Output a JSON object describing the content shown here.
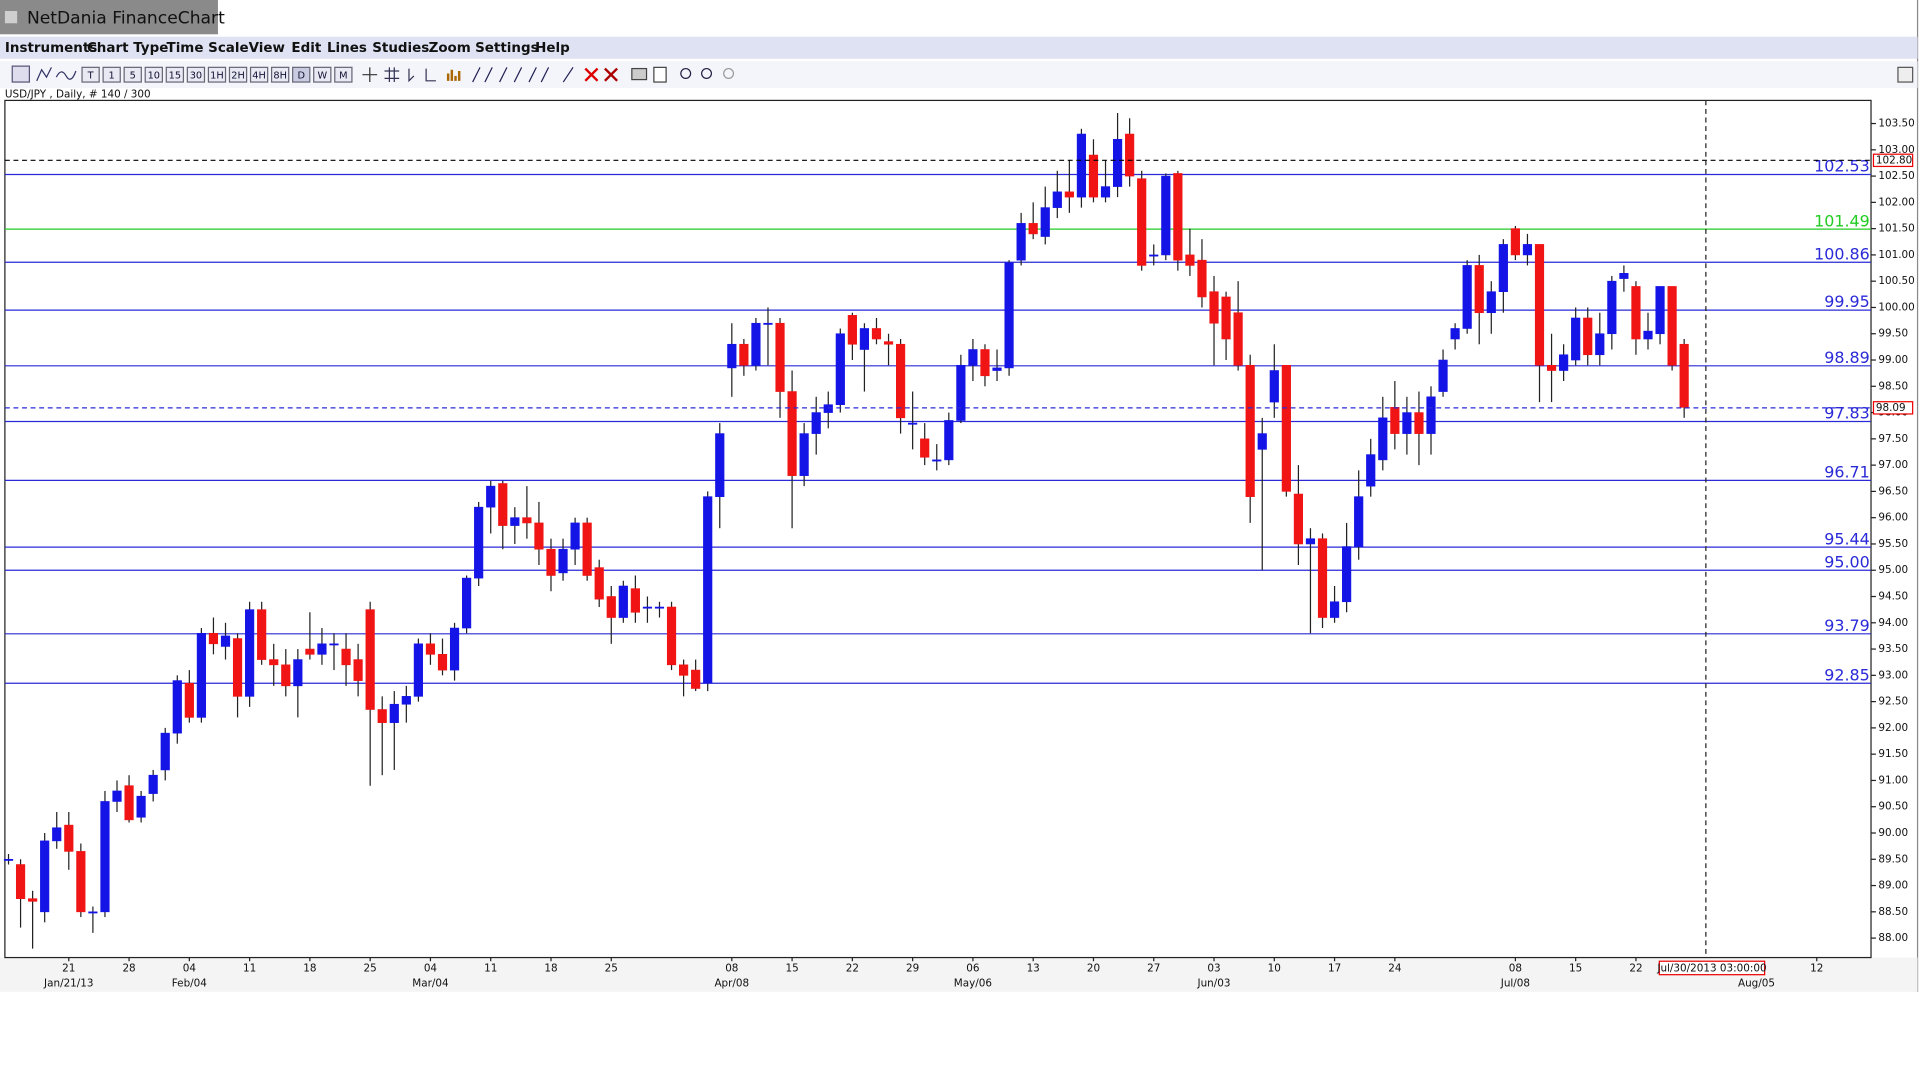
{
  "window_title": "NetDania FinanceChart",
  "menu": [
    "Instruments",
    "Chart Type",
    "Time Scale",
    "View",
    "Edit",
    "Lines",
    "Studies",
    "Zoom",
    "Settings",
    "Help"
  ],
  "toolbar": [
    "T",
    "1",
    "5",
    "10",
    "15",
    "30",
    "1H",
    "2H",
    "4H",
    "8H",
    "D",
    "W",
    "M"
  ],
  "chart_data": {
    "type": "candlestick",
    "title": "USD/JPY , Daily, # 140 / 300",
    "up_color": "#1414e6",
    "down_color": "#f01414",
    "ohlc": [
      [
        89.5,
        89.6,
        89.4,
        89.5
      ],
      [
        89.4,
        89.5,
        88.2,
        88.75
      ],
      [
        88.75,
        88.9,
        87.8,
        88.7
      ],
      [
        88.5,
        90.0,
        88.3,
        89.85
      ],
      [
        89.85,
        90.4,
        89.7,
        90.1
      ],
      [
        90.15,
        90.4,
        89.3,
        89.65
      ],
      [
        89.65,
        89.8,
        88.4,
        88.5
      ],
      [
        88.5,
        88.6,
        88.1,
        88.5
      ],
      [
        88.5,
        90.8,
        88.4,
        90.6
      ],
      [
        90.6,
        91.0,
        90.4,
        90.8
      ],
      [
        90.9,
        91.1,
        90.2,
        90.25
      ],
      [
        90.3,
        90.8,
        90.2,
        90.7
      ],
      [
        90.75,
        91.2,
        90.6,
        91.1
      ],
      [
        91.2,
        92.0,
        91.0,
        91.9
      ],
      [
        91.9,
        93.0,
        91.7,
        92.9
      ],
      [
        92.85,
        93.1,
        92.1,
        92.2
      ],
      [
        92.2,
        93.9,
        92.1,
        93.8
      ],
      [
        93.8,
        94.1,
        93.4,
        93.6
      ],
      [
        93.55,
        94.0,
        93.3,
        93.75
      ],
      [
        93.7,
        93.8,
        92.2,
        92.6
      ],
      [
        92.6,
        94.4,
        92.4,
        94.25
      ],
      [
        94.25,
        94.4,
        93.2,
        93.3
      ],
      [
        93.3,
        93.6,
        92.8,
        93.2
      ],
      [
        93.2,
        93.5,
        92.6,
        92.8
      ],
      [
        92.8,
        93.5,
        92.2,
        93.3
      ],
      [
        93.5,
        94.2,
        93.3,
        93.4
      ],
      [
        93.4,
        93.9,
        93.2,
        93.6
      ],
      [
        93.6,
        93.8,
        93.1,
        93.6
      ],
      [
        93.5,
        93.8,
        92.8,
        93.2
      ],
      [
        93.3,
        93.6,
        92.6,
        92.9
      ],
      [
        94.25,
        94.4,
        90.9,
        92.35
      ],
      [
        92.35,
        92.6,
        91.1,
        92.1
      ],
      [
        92.1,
        92.7,
        91.2,
        92.45
      ],
      [
        92.45,
        92.8,
        92.1,
        92.6
      ],
      [
        92.6,
        93.7,
        92.5,
        93.6
      ],
      [
        93.6,
        93.8,
        93.2,
        93.4
      ],
      [
        93.4,
        93.7,
        93.0,
        93.1
      ],
      [
        93.1,
        94.0,
        92.9,
        93.9
      ],
      [
        93.9,
        94.9,
        93.8,
        94.85
      ],
      [
        94.85,
        96.3,
        94.7,
        96.2
      ],
      [
        96.2,
        96.7,
        95.7,
        96.6
      ],
      [
        96.65,
        96.7,
        95.4,
        95.85
      ],
      [
        95.85,
        96.2,
        95.5,
        96.0
      ],
      [
        96.0,
        96.6,
        95.6,
        95.9
      ],
      [
        95.9,
        96.3,
        95.1,
        95.4
      ],
      [
        95.4,
        95.6,
        94.6,
        94.9
      ],
      [
        94.95,
        95.6,
        94.8,
        95.4
      ],
      [
        95.4,
        96.0,
        95.1,
        95.9
      ],
      [
        95.9,
        96.0,
        94.8,
        94.9
      ],
      [
        95.05,
        95.2,
        94.3,
        94.45
      ],
      [
        94.5,
        94.7,
        93.6,
        94.1
      ],
      [
        94.1,
        94.8,
        94.0,
        94.7
      ],
      [
        94.65,
        94.9,
        94.0,
        94.2
      ],
      [
        94.3,
        94.5,
        94.0,
        94.3
      ],
      [
        94.3,
        94.4,
        94.1,
        94.3
      ],
      [
        94.3,
        94.4,
        93.1,
        93.2
      ],
      [
        93.2,
        93.3,
        92.6,
        93.0
      ],
      [
        93.1,
        93.3,
        92.7,
        92.75
      ],
      [
        92.85,
        96.5,
        92.7,
        96.4
      ],
      [
        96.4,
        97.8,
        95.8,
        97.6
      ],
      [
        98.85,
        99.7,
        98.3,
        99.3
      ],
      [
        99.3,
        99.4,
        98.7,
        98.9
      ],
      [
        98.9,
        99.8,
        98.8,
        99.7
      ],
      [
        99.7,
        100.0,
        98.9,
        99.7
      ],
      [
        99.7,
        99.8,
        97.9,
        98.4
      ],
      [
        98.4,
        98.8,
        95.8,
        96.8
      ],
      [
        96.8,
        97.8,
        96.6,
        97.6
      ],
      [
        97.6,
        98.3,
        97.2,
        98.0
      ],
      [
        98.0,
        98.4,
        97.7,
        98.15
      ],
      [
        98.15,
        99.6,
        98.0,
        99.5
      ],
      [
        99.85,
        99.9,
        99.0,
        99.3
      ],
      [
        99.2,
        99.7,
        98.4,
        99.6
      ],
      [
        99.6,
        99.8,
        99.3,
        99.4
      ],
      [
        99.35,
        99.5,
        98.9,
        99.3
      ],
      [
        99.3,
        99.4,
        97.6,
        97.9
      ],
      [
        97.8,
        98.4,
        97.3,
        97.8
      ],
      [
        97.5,
        97.8,
        97.0,
        97.15
      ],
      [
        97.1,
        97.4,
        96.9,
        97.1
      ],
      [
        97.1,
        98.0,
        97.0,
        97.85
      ],
      [
        97.85,
        99.1,
        97.8,
        98.9
      ],
      [
        98.9,
        99.4,
        98.6,
        99.2
      ],
      [
        99.2,
        99.3,
        98.5,
        98.7
      ],
      [
        98.8,
        99.2,
        98.6,
        98.85
      ],
      [
        98.85,
        100.9,
        98.7,
        100.85
      ],
      [
        100.9,
        101.8,
        100.8,
        101.6
      ],
      [
        101.6,
        102.0,
        101.3,
        101.4
      ],
      [
        101.35,
        102.3,
        101.2,
        101.9
      ],
      [
        101.9,
        102.6,
        101.7,
        102.2
      ],
      [
        102.2,
        102.8,
        101.8,
        102.1
      ],
      [
        102.1,
        103.4,
        101.9,
        103.3
      ],
      [
        102.9,
        103.2,
        102.0,
        102.1
      ],
      [
        102.1,
        102.8,
        102.0,
        102.3
      ],
      [
        102.3,
        103.7,
        102.1,
        103.2
      ],
      [
        103.3,
        103.6,
        102.3,
        102.5
      ],
      [
        102.45,
        102.6,
        100.7,
        100.8
      ],
      [
        101.0,
        101.2,
        100.8,
        101.0
      ],
      [
        101.0,
        102.55,
        100.9,
        102.5
      ],
      [
        102.55,
        102.6,
        100.7,
        100.9
      ],
      [
        101.0,
        101.5,
        100.6,
        100.8
      ],
      [
        100.9,
        101.3,
        100.0,
        100.2
      ],
      [
        100.3,
        100.6,
        98.9,
        99.7
      ],
      [
        100.2,
        100.3,
        99.0,
        99.4
      ],
      [
        99.9,
        100.5,
        98.8,
        98.9
      ],
      [
        98.9,
        99.1,
        95.9,
        96.4
      ],
      [
        97.3,
        97.9,
        95.0,
        97.6
      ],
      [
        98.2,
        99.3,
        97.9,
        98.8
      ],
      [
        98.9,
        98.9,
        96.4,
        96.5
      ],
      [
        96.45,
        97.0,
        95.1,
        95.5
      ],
      [
        95.5,
        95.8,
        93.8,
        95.6
      ],
      [
        95.6,
        95.7,
        93.9,
        94.1
      ],
      [
        94.1,
        94.7,
        94.0,
        94.4
      ],
      [
        94.4,
        95.9,
        94.2,
        95.45
      ],
      [
        95.45,
        96.9,
        95.2,
        96.4
      ],
      [
        96.6,
        97.5,
        96.4,
        97.2
      ],
      [
        97.1,
        98.3,
        96.9,
        97.9
      ],
      [
        98.1,
        98.6,
        97.3,
        97.6
      ],
      [
        97.6,
        98.3,
        97.2,
        98.0
      ],
      [
        98.0,
        98.4,
        97.0,
        97.6
      ],
      [
        97.6,
        98.5,
        97.2,
        98.3
      ],
      [
        98.4,
        99.2,
        98.3,
        99.0
      ],
      [
        99.4,
        99.7,
        99.2,
        99.6
      ],
      [
        99.6,
        100.9,
        99.5,
        100.8
      ],
      [
        100.8,
        101.0,
        99.3,
        99.9
      ],
      [
        99.9,
        100.5,
        99.5,
        100.3
      ],
      [
        100.3,
        101.3,
        99.9,
        101.2
      ],
      [
        101.5,
        101.55,
        100.9,
        101.0
      ],
      [
        101.0,
        101.4,
        100.8,
        101.2
      ],
      [
        101.2,
        101.2,
        98.2,
        98.9
      ],
      [
        98.9,
        99.5,
        98.2,
        98.8
      ],
      [
        98.8,
        99.3,
        98.6,
        99.1
      ],
      [
        99.0,
        100.0,
        98.9,
        99.8
      ],
      [
        99.8,
        100.0,
        98.9,
        99.1
      ],
      [
        99.1,
        99.9,
        98.9,
        99.5
      ],
      [
        99.5,
        100.6,
        99.2,
        100.5
      ],
      [
        100.55,
        100.8,
        100.3,
        100.65
      ],
      [
        100.4,
        100.5,
        99.1,
        99.4
      ],
      [
        99.4,
        99.9,
        99.2,
        99.55
      ],
      [
        99.5,
        100.4,
        99.3,
        100.4
      ],
      [
        100.4,
        100.4,
        98.8,
        98.9
      ],
      [
        99.3,
        99.4,
        97.9,
        98.1
      ]
    ],
    "xlim": [
      -0.3,
      154.5
    ],
    "xticks": [
      {
        "value": 5,
        "label": "21"
      },
      {
        "value": 10,
        "label": "28"
      },
      {
        "value": 15,
        "label": "04"
      },
      {
        "value": 20,
        "label": "11"
      },
      {
        "value": 25,
        "label": "18"
      },
      {
        "value": 30,
        "label": "25"
      },
      {
        "value": 35,
        "label": "04"
      },
      {
        "value": 40,
        "label": "11"
      },
      {
        "value": 45,
        "label": "18"
      },
      {
        "value": 50,
        "label": "25"
      },
      {
        "value": 60,
        "label": "08"
      },
      {
        "value": 65,
        "label": "15"
      },
      {
        "value": 70,
        "label": "22"
      },
      {
        "value": 75,
        "label": "29"
      },
      {
        "value": 80,
        "label": "06"
      },
      {
        "value": 85,
        "label": "13"
      },
      {
        "value": 90,
        "label": "20"
      },
      {
        "value": 95,
        "label": "27"
      },
      {
        "value": 100,
        "label": "03"
      },
      {
        "value": 105,
        "label": "10"
      },
      {
        "value": 110,
        "label": "17"
      },
      {
        "value": 115,
        "label": "24"
      },
      {
        "value": 125,
        "label": "08"
      },
      {
        "value": 130,
        "label": "15"
      },
      {
        "value": 135,
        "label": "22"
      },
      {
        "value": 150,
        "label": "12"
      }
    ],
    "month_labels": [
      {
        "value": 5,
        "label": "Jan/21/13"
      },
      {
        "value": 15,
        "label": "Feb/04"
      },
      {
        "value": 35,
        "label": "Mar/04"
      },
      {
        "value": 60,
        "label": "Apr/08"
      },
      {
        "value": 80,
        "label": "May/06"
      },
      {
        "value": 100,
        "label": "Jun/03"
      },
      {
        "value": 125,
        "label": "Jul/08"
      },
      {
        "value": 145,
        "label": "Aug/05"
      }
    ],
    "ylim": [
      87.63,
      103.94
    ],
    "yticks": [
      {
        "value": 88,
        "label": "88.00"
      },
      {
        "value": 88.5,
        "label": "88.50"
      },
      {
        "value": 89,
        "label": "89.00"
      },
      {
        "value": 89.5,
        "label": "89.50"
      },
      {
        "value": 90,
        "label": "90.00"
      },
      {
        "value": 90.5,
        "label": "90.50"
      },
      {
        "value": 91,
        "label": "91.00"
      },
      {
        "value": 91.5,
        "label": "91.50"
      },
      {
        "value": 92,
        "label": "92.00"
      },
      {
        "value": 92.5,
        "label": "92.50"
      },
      {
        "value": 93,
        "label": "93.00"
      },
      {
        "value": 93.5,
        "label": "93.50"
      },
      {
        "value": 94,
        "label": "94.00"
      },
      {
        "value": 94.5,
        "label": "94.50"
      },
      {
        "value": 95,
        "label": "95.00"
      },
      {
        "value": 95.5,
        "label": "95.50"
      },
      {
        "value": 96,
        "label": "96.00"
      },
      {
        "value": 96.5,
        "label": "96.50"
      },
      {
        "value": 97,
        "label": "97.00"
      },
      {
        "value": 97.5,
        "label": "97.50"
      },
      {
        "value": 98,
        "label": "98.00"
      },
      {
        "value": 98.5,
        "label": "98.50"
      },
      {
        "value": 99,
        "label": "99.00"
      },
      {
        "value": 99.5,
        "label": "99.50"
      },
      {
        "value": 100,
        "label": "100.00"
      },
      {
        "value": 100.5,
        "label": "100.50"
      },
      {
        "value": 101,
        "label": "101.00"
      },
      {
        "value": 101.5,
        "label": "101.50"
      },
      {
        "value": 102,
        "label": "102.00"
      },
      {
        "value": 102.5,
        "label": "102.50"
      },
      {
        "value": 103,
        "label": "103.00"
      },
      {
        "value": 103.5,
        "label": "103.50"
      }
    ],
    "levels": [
      102.53,
      101.49,
      100.86,
      99.95,
      98.89,
      97.83,
      96.71,
      95.44,
      {
        "value": 95,
        "label": "95.00"
      },
      93.79,
      92.85
    ],
    "level_colors": [
      "#2a2ad8",
      "#22cc22",
      "#2a2ad8",
      "#2a2ad8",
      "#2a2ad8",
      "#2a2ad8",
      "#2a2ad8",
      "#2a2ad8",
      "#2a2ad8",
      "#2a2ad8",
      "#2a2ad8"
    ],
    "price_lines": [
      {
        "value": 102.8,
        "label": "102.80"
      },
      98.09
    ],
    "price_line_colors": [
      "#000000",
      "#2a2ad8"
    ],
    "cursor": {
      "x": 140.8,
      "label": "Jul/30/2013 03:00:00"
    }
  }
}
